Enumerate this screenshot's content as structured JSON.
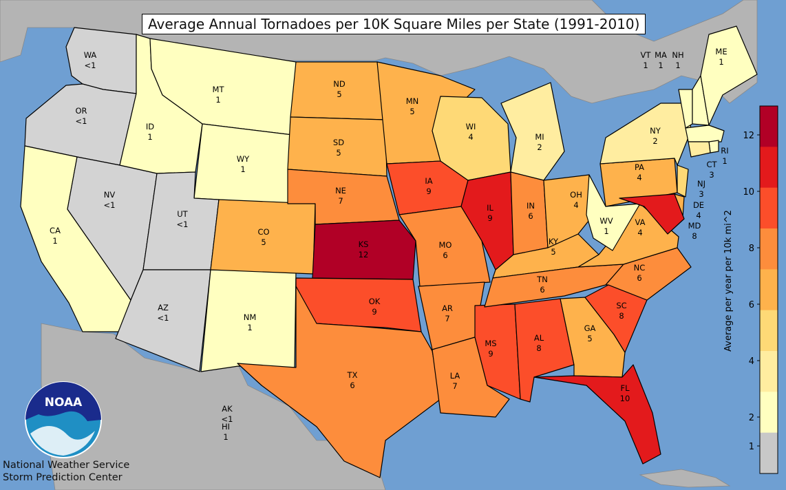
{
  "title": "Average Annual Tornadoes per 10K Square Miles per State (1991-2010)",
  "colorbar": {
    "label": "Average per year per 10k mi^2",
    "ticks": [
      "1",
      "2",
      "4",
      "6",
      "8",
      "10",
      "12"
    ],
    "colors": [
      "#c8c8c8",
      "#ffffc0",
      "#ffeda0",
      "#fed976",
      "#feb24c",
      "#fd8d3c",
      "#fc4e2a",
      "#e31a1c",
      "#b10026"
    ]
  },
  "logo": {
    "text": "NOAA"
  },
  "credits": {
    "line1": "National Weather Service",
    "line2": "Storm Prediction Center"
  },
  "extra_labels": [
    {
      "key": "AK",
      "abbr": "AK",
      "value": "<1"
    },
    {
      "key": "HI",
      "abbr": "HI",
      "value": "1"
    }
  ],
  "states": [
    {
      "abbr": "WA",
      "value": "<1",
      "fill": "#d3d3d3"
    },
    {
      "abbr": "OR",
      "value": "<1",
      "fill": "#d3d3d3"
    },
    {
      "abbr": "CA",
      "value": "1",
      "fill": "#ffffc0"
    },
    {
      "abbr": "NV",
      "value": "<1",
      "fill": "#d3d3d3"
    },
    {
      "abbr": "ID",
      "value": "1",
      "fill": "#ffffc0"
    },
    {
      "abbr": "MT",
      "value": "1",
      "fill": "#ffffc0"
    },
    {
      "abbr": "WY",
      "value": "1",
      "fill": "#ffffc0"
    },
    {
      "abbr": "UT",
      "value": "<1",
      "fill": "#d3d3d3"
    },
    {
      "abbr": "AZ",
      "value": "<1",
      "fill": "#d3d3d3"
    },
    {
      "abbr": "NM",
      "value": "1",
      "fill": "#ffffc0"
    },
    {
      "abbr": "CO",
      "value": "5",
      "fill": "#feb24c"
    },
    {
      "abbr": "ND",
      "value": "5",
      "fill": "#feb24c"
    },
    {
      "abbr": "SD",
      "value": "5",
      "fill": "#feb24c"
    },
    {
      "abbr": "NE",
      "value": "7",
      "fill": "#fd8d3c"
    },
    {
      "abbr": "KS",
      "value": "12",
      "fill": "#b10026"
    },
    {
      "abbr": "OK",
      "value": "9",
      "fill": "#fc4e2a"
    },
    {
      "abbr": "TX",
      "value": "6",
      "fill": "#fd8d3c"
    },
    {
      "abbr": "MN",
      "value": "5",
      "fill": "#feb24c"
    },
    {
      "abbr": "IA",
      "value": "9",
      "fill": "#fc4e2a"
    },
    {
      "abbr": "MO",
      "value": "6",
      "fill": "#fd8d3c"
    },
    {
      "abbr": "AR",
      "value": "7",
      "fill": "#fd8d3c"
    },
    {
      "abbr": "LA",
      "value": "7",
      "fill": "#fd8d3c"
    },
    {
      "abbr": "WI",
      "value": "4",
      "fill": "#fed976"
    },
    {
      "abbr": "IL",
      "value": "9",
      "fill": "#e31a1c"
    },
    {
      "abbr": "MS",
      "value": "9",
      "fill": "#fc4e2a"
    },
    {
      "abbr": "MI",
      "value": "2",
      "fill": "#ffeda0"
    },
    {
      "abbr": "IN",
      "value": "6",
      "fill": "#fd8d3c"
    },
    {
      "abbr": "KY",
      "value": "5",
      "fill": "#feb24c"
    },
    {
      "abbr": "TN",
      "value": "6",
      "fill": "#fd8d3c"
    },
    {
      "abbr": "AL",
      "value": "8",
      "fill": "#fc4e2a"
    },
    {
      "abbr": "OH",
      "value": "4",
      "fill": "#feb24c"
    },
    {
      "abbr": "GA",
      "value": "5",
      "fill": "#feb24c"
    },
    {
      "abbr": "FL",
      "value": "10",
      "fill": "#e31a1c"
    },
    {
      "abbr": "SC",
      "value": "8",
      "fill": "#fc4e2a"
    },
    {
      "abbr": "NC",
      "value": "6",
      "fill": "#fd8d3c"
    },
    {
      "abbr": "VA",
      "value": "4",
      "fill": "#feb24c"
    },
    {
      "abbr": "WV",
      "value": "1",
      "fill": "#ffffc0"
    },
    {
      "abbr": "PA",
      "value": "4",
      "fill": "#feb24c"
    },
    {
      "abbr": "NY",
      "value": "2",
      "fill": "#ffeda0"
    },
    {
      "abbr": "VT",
      "value": "1",
      "fill": "#ffffc0"
    },
    {
      "abbr": "NH",
      "value": "1",
      "fill": "#ffffc0"
    },
    {
      "abbr": "ME",
      "value": "1",
      "fill": "#ffffc0"
    },
    {
      "abbr": "MA",
      "value": "1",
      "fill": "#ffffc0"
    },
    {
      "abbr": "RI",
      "value": "1",
      "fill": "#ffffc0"
    },
    {
      "abbr": "CT",
      "value": "3",
      "fill": "#ffeda0"
    },
    {
      "abbr": "NJ",
      "value": "3",
      "fill": "#fed976"
    },
    {
      "abbr": "DE",
      "value": "4",
      "fill": "#feb24c"
    },
    {
      "abbr": "MD",
      "value": "8",
      "fill": "#e31a1c"
    }
  ]
}
